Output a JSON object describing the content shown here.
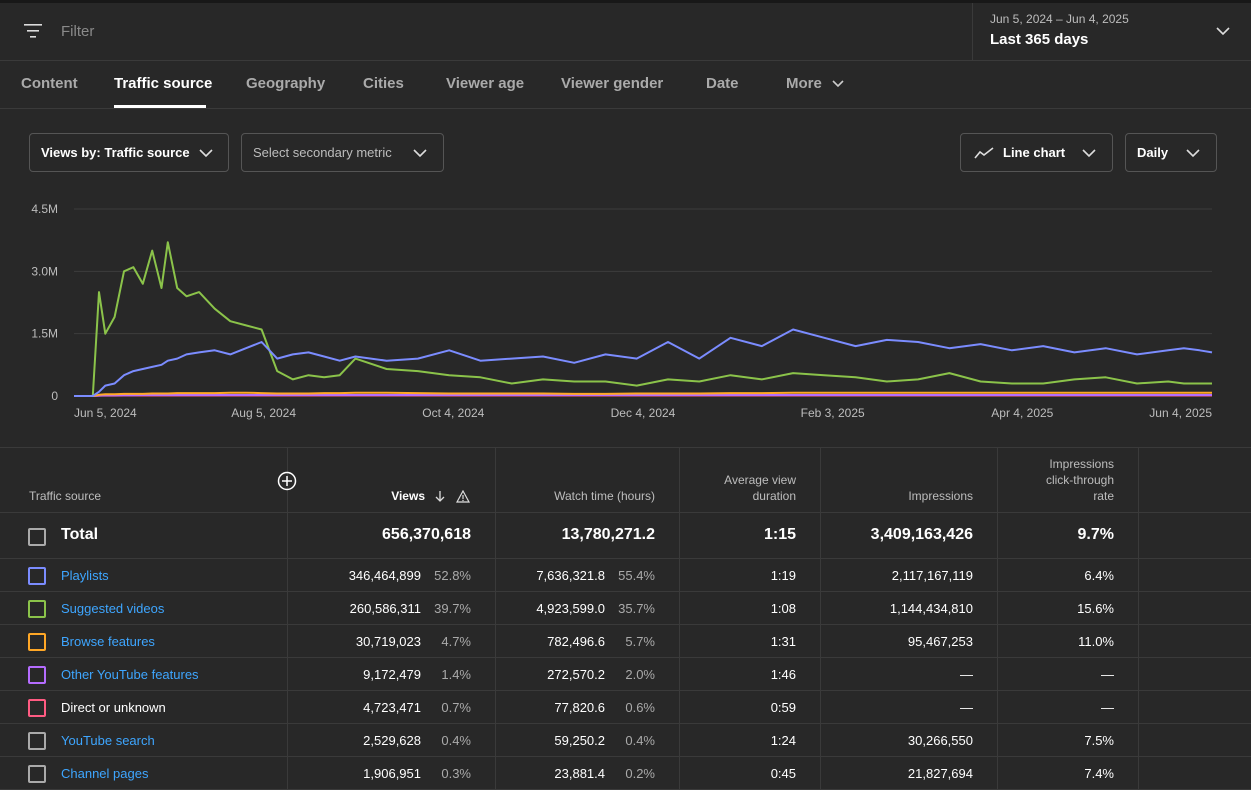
{
  "filter": {
    "placeholder": "Filter"
  },
  "date": {
    "range": "Jun 5, 2024 – Jun 4, 2025",
    "label": "Last 365 days"
  },
  "tabs": [
    {
      "label": "Content"
    },
    {
      "label": "Traffic source"
    },
    {
      "label": "Geography"
    },
    {
      "label": "Cities"
    },
    {
      "label": "Viewer age"
    },
    {
      "label": "Viewer gender"
    },
    {
      "label": "Date"
    },
    {
      "label": "More"
    }
  ],
  "controls": {
    "views_by": "Views by: Traffic source",
    "secondary": "Select secondary metric",
    "chart_type": "Line chart",
    "interval": "Daily"
  },
  "chart_data": {
    "type": "line",
    "y_ticks": [
      "4.5M",
      "3.0M",
      "1.5M",
      "0"
    ],
    "y_tick_values": [
      4500000,
      3000000,
      1500000,
      0
    ],
    "x_ticks": [
      "Jun 5, 2024",
      "Aug 5, 2024",
      "Oct 4, 2024",
      "Dec 4, 2024",
      "Feb 3, 2025",
      "Apr 4, 2025",
      "Jun 4, 2025"
    ],
    "ylim": [
      0,
      4500000
    ],
    "grid": true,
    "x_days": [
      0,
      6,
      8,
      10,
      13,
      16,
      19,
      22,
      25,
      28,
      30,
      33,
      36,
      40,
      45,
      50,
      55,
      60,
      65,
      70,
      75,
      80,
      85,
      90,
      100,
      110,
      120,
      130,
      140,
      150,
      160,
      170,
      180,
      190,
      200,
      210,
      220,
      230,
      240,
      250,
      260,
      270,
      280,
      290,
      300,
      310,
      320,
      330,
      340,
      350,
      355,
      360,
      364
    ],
    "series": [
      {
        "name": "Playlists",
        "color": "#7b8cff",
        "values": [
          0,
          0,
          100000,
          250000,
          300000,
          500000,
          600000,
          650000,
          700000,
          750000,
          850000,
          900000,
          1000000,
          1050000,
          1100000,
          1000000,
          1150000,
          1300000,
          900000,
          1000000,
          1050000,
          950000,
          850000,
          950000,
          850000,
          900000,
          1100000,
          850000,
          900000,
          950000,
          800000,
          1000000,
          900000,
          1300000,
          900000,
          1400000,
          1200000,
          1600000,
          1400000,
          1200000,
          1350000,
          1300000,
          1150000,
          1250000,
          1100000,
          1200000,
          1050000,
          1150000,
          1000000,
          1100000,
          1150000,
          1100000,
          1050000
        ]
      },
      {
        "name": "Suggested videos",
        "color": "#8bc34a",
        "values": [
          0,
          0,
          2500000,
          1500000,
          1900000,
          3000000,
          3100000,
          2700000,
          3500000,
          2600000,
          3700000,
          2600000,
          2400000,
          2500000,
          2100000,
          1800000,
          1700000,
          1600000,
          600000,
          400000,
          500000,
          450000,
          500000,
          900000,
          650000,
          600000,
          500000,
          450000,
          300000,
          400000,
          350000,
          350000,
          250000,
          400000,
          350000,
          500000,
          400000,
          550000,
          500000,
          450000,
          350000,
          400000,
          550000,
          350000,
          300000,
          300000,
          400000,
          450000,
          300000,
          350000,
          300000,
          300000,
          300000
        ]
      },
      {
        "name": "Browse features",
        "color": "#ffa726",
        "values": [
          0,
          0,
          30000,
          40000,
          40000,
          50000,
          50000,
          50000,
          60000,
          60000,
          60000,
          70000,
          70000,
          70000,
          70000,
          80000,
          80000,
          70000,
          60000,
          60000,
          60000,
          70000,
          70000,
          80000,
          80000,
          70000,
          60000,
          60000,
          60000,
          60000,
          50000,
          50000,
          60000,
          60000,
          60000,
          70000,
          70000,
          80000,
          80000,
          80000,
          80000,
          80000,
          80000,
          80000,
          80000,
          80000,
          80000,
          80000,
          80000,
          80000,
          80000,
          80000,
          80000
        ]
      },
      {
        "name": "Other YouTube features",
        "color": "#b56cff",
        "values": [
          0,
          0,
          10000,
          15000,
          15000,
          20000,
          20000,
          25000,
          25000,
          25000,
          25000,
          25000,
          25000,
          25000,
          25000,
          25000,
          25000,
          25000,
          25000,
          25000,
          25000,
          25000,
          25000,
          25000,
          25000,
          25000,
          25000,
          25000,
          25000,
          25000,
          25000,
          25000,
          25000,
          25000,
          25000,
          25000,
          25000,
          25000,
          25000,
          25000,
          25000,
          25000,
          25000,
          25000,
          25000,
          25000,
          25000,
          25000,
          25000,
          25000,
          25000,
          25000,
          25000
        ]
      },
      {
        "name": "Direct or unknown",
        "color": "#ff5b82",
        "values": [
          0,
          0,
          10000,
          10000,
          10000,
          12000,
          12000,
          12000,
          12000,
          13000,
          13000,
          13000,
          13000,
          13000,
          13000,
          13000,
          13000,
          13000,
          13000,
          13000,
          13000,
          13000,
          13000,
          13000,
          13000,
          13000,
          13000,
          13000,
          13000,
          13000,
          13000,
          13000,
          13000,
          13000,
          13000,
          13000,
          13000,
          13000,
          13000,
          13000,
          13000,
          13000,
          13000,
          13000,
          13000,
          13000,
          13000,
          13000,
          13000,
          13000,
          13000,
          13000,
          13000
        ]
      }
    ]
  },
  "table": {
    "headers": {
      "source": "Traffic source",
      "views": "Views",
      "watch": "Watch time (hours)",
      "avd": "Average view duration",
      "impr": "Impressions",
      "ctr": "Impressions click-through rate"
    },
    "total": {
      "label": "Total",
      "views": "656,370,618",
      "watch": "13,780,271.2",
      "avd": "1:15",
      "impr": "3,409,163,426",
      "ctr": "9.7%"
    },
    "rows": [
      {
        "label": "Playlists",
        "color": "#7b8cff",
        "views": "346,464,899",
        "vpct": "52.8%",
        "watch": "7,636,321.8",
        "wpct": "55.4%",
        "avd": "1:19",
        "impr": "2,117,167,119",
        "ctr": "6.4%",
        "link": true
      },
      {
        "label": "Suggested videos",
        "color": "#8bc34a",
        "views": "260,586,311",
        "vpct": "39.7%",
        "watch": "4,923,599.0",
        "wpct": "35.7%",
        "avd": "1:08",
        "impr": "1,144,434,810",
        "ctr": "15.6%",
        "link": true
      },
      {
        "label": "Browse features",
        "color": "#ffa726",
        "views": "30,719,023",
        "vpct": "4.7%",
        "watch": "782,496.6",
        "wpct": "5.7%",
        "avd": "1:31",
        "impr": "95,467,253",
        "ctr": "11.0%",
        "link": true
      },
      {
        "label": "Other YouTube features",
        "color": "#b56cff",
        "views": "9,172,479",
        "vpct": "1.4%",
        "watch": "272,570.2",
        "wpct": "2.0%",
        "avd": "1:46",
        "impr": "—",
        "ctr": "—",
        "link": true
      },
      {
        "label": "Direct or unknown",
        "color": "#ff5b82",
        "views": "4,723,471",
        "vpct": "0.7%",
        "watch": "77,820.6",
        "wpct": "0.6%",
        "avd": "0:59",
        "impr": "—",
        "ctr": "—",
        "link": false
      },
      {
        "label": "YouTube search",
        "color": "#aaaaaa",
        "views": "2,529,628",
        "vpct": "0.4%",
        "watch": "59,250.2",
        "wpct": "0.4%",
        "avd": "1:24",
        "impr": "30,266,550",
        "ctr": "7.5%",
        "link": true
      },
      {
        "label": "Channel pages",
        "color": "#aaaaaa",
        "views": "1,906,951",
        "vpct": "0.3%",
        "watch": "23,881.4",
        "wpct": "0.2%",
        "avd": "0:45",
        "impr": "21,827,694",
        "ctr": "7.4%",
        "link": true
      }
    ]
  }
}
